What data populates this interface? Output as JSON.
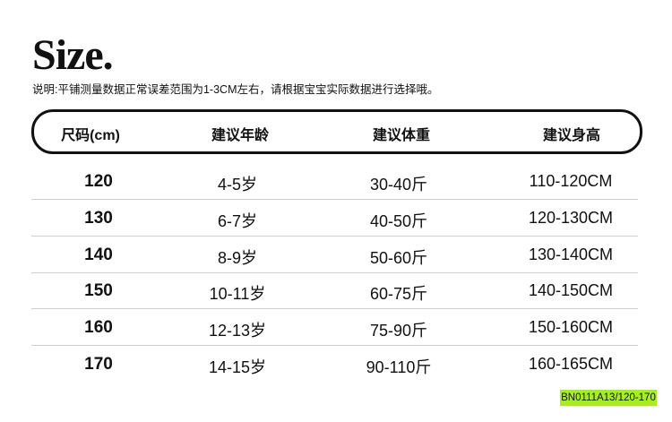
{
  "title": "Size.",
  "note": "说明:平铺测量数据正常误差范围为1-3CM左右，请根据宝宝实际数据进行选择哦。",
  "table": {
    "headers": [
      "尺码(cm)",
      "建议年龄",
      "建议体重",
      "建议身高"
    ],
    "rows": [
      [
        "120",
        "4-5岁",
        "30-40斤",
        "110-120CM"
      ],
      [
        "130",
        "6-7岁",
        "40-50斤",
        "120-130CM"
      ],
      [
        "140",
        "8-9岁",
        "50-60斤",
        "130-140CM"
      ],
      [
        "150",
        "10-11岁",
        "60-75斤",
        "140-150CM"
      ],
      [
        "160",
        "12-13岁",
        "75-90斤",
        "150-160CM"
      ],
      [
        "170",
        "14-15岁",
        "90-110斤",
        "160-165CM"
      ]
    ]
  },
  "badge": {
    "text": "BN0111A13/120-170",
    "color": "#a6ef1c"
  }
}
